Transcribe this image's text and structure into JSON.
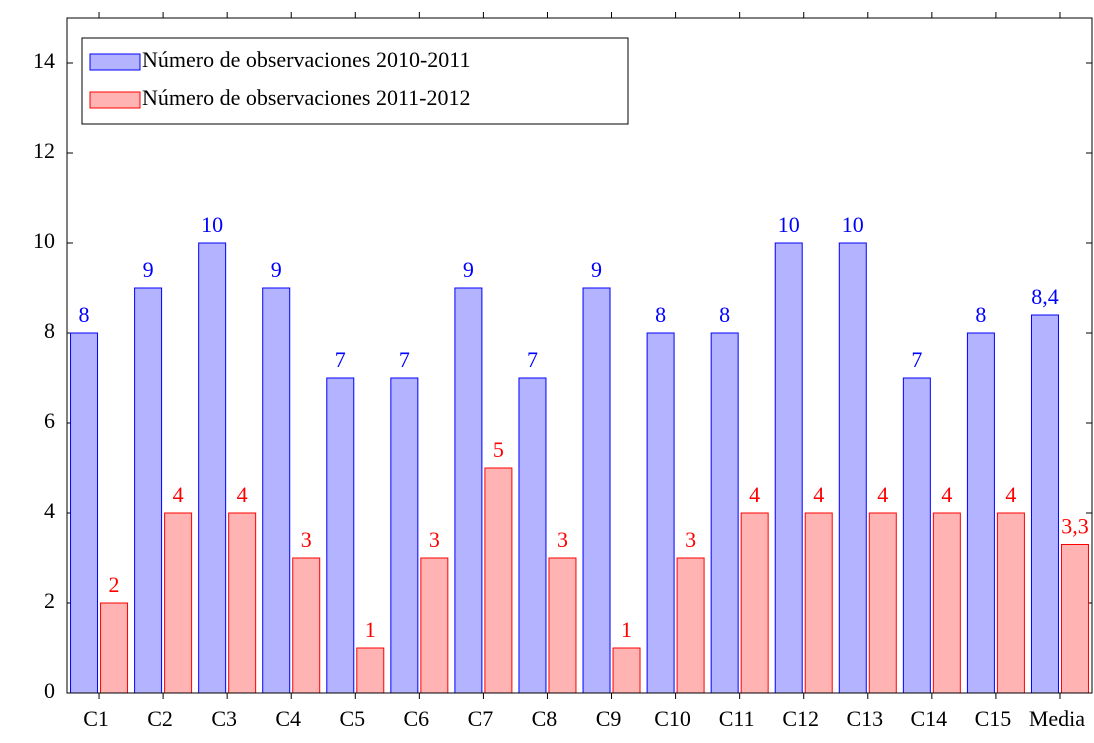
{
  "chart_data": {
    "type": "bar",
    "categories": [
      "C1",
      "C2",
      "C3",
      "C4",
      "C5",
      "C6",
      "C7",
      "C8",
      "C9",
      "C10",
      "C11",
      "C12",
      "C13",
      "C14",
      "C15",
      "Media"
    ],
    "series": [
      {
        "name": "Número de observaciones 2010-2011",
        "color": "#0000ff",
        "fill": "#b3b3ff",
        "values": [
          8,
          9,
          10,
          9,
          7,
          7,
          9,
          7,
          9,
          8,
          8,
          10,
          10,
          7,
          8,
          8.4
        ],
        "value_labels": [
          "8",
          "9",
          "10",
          "9",
          "7",
          "7",
          "9",
          "7",
          "9",
          "8",
          "8",
          "10",
          "10",
          "7",
          "8",
          "8,4"
        ]
      },
      {
        "name": "Número de observaciones 2011-2012",
        "color": "#ff0000",
        "fill": "#ffb3b3",
        "values": [
          2,
          4,
          4,
          3,
          1,
          3,
          5,
          3,
          1,
          3,
          4,
          4,
          4,
          4,
          4,
          3.3
        ],
        "value_labels": [
          "2",
          "4",
          "4",
          "3",
          "1",
          "3",
          "5",
          "3",
          "1",
          "3",
          "4",
          "4",
          "4",
          "4",
          "4",
          "3,3"
        ]
      }
    ],
    "ylim": [
      0,
      15
    ],
    "yticks": [
      0,
      2,
      4,
      6,
      8,
      10,
      12,
      14
    ],
    "legend": "upper left"
  }
}
